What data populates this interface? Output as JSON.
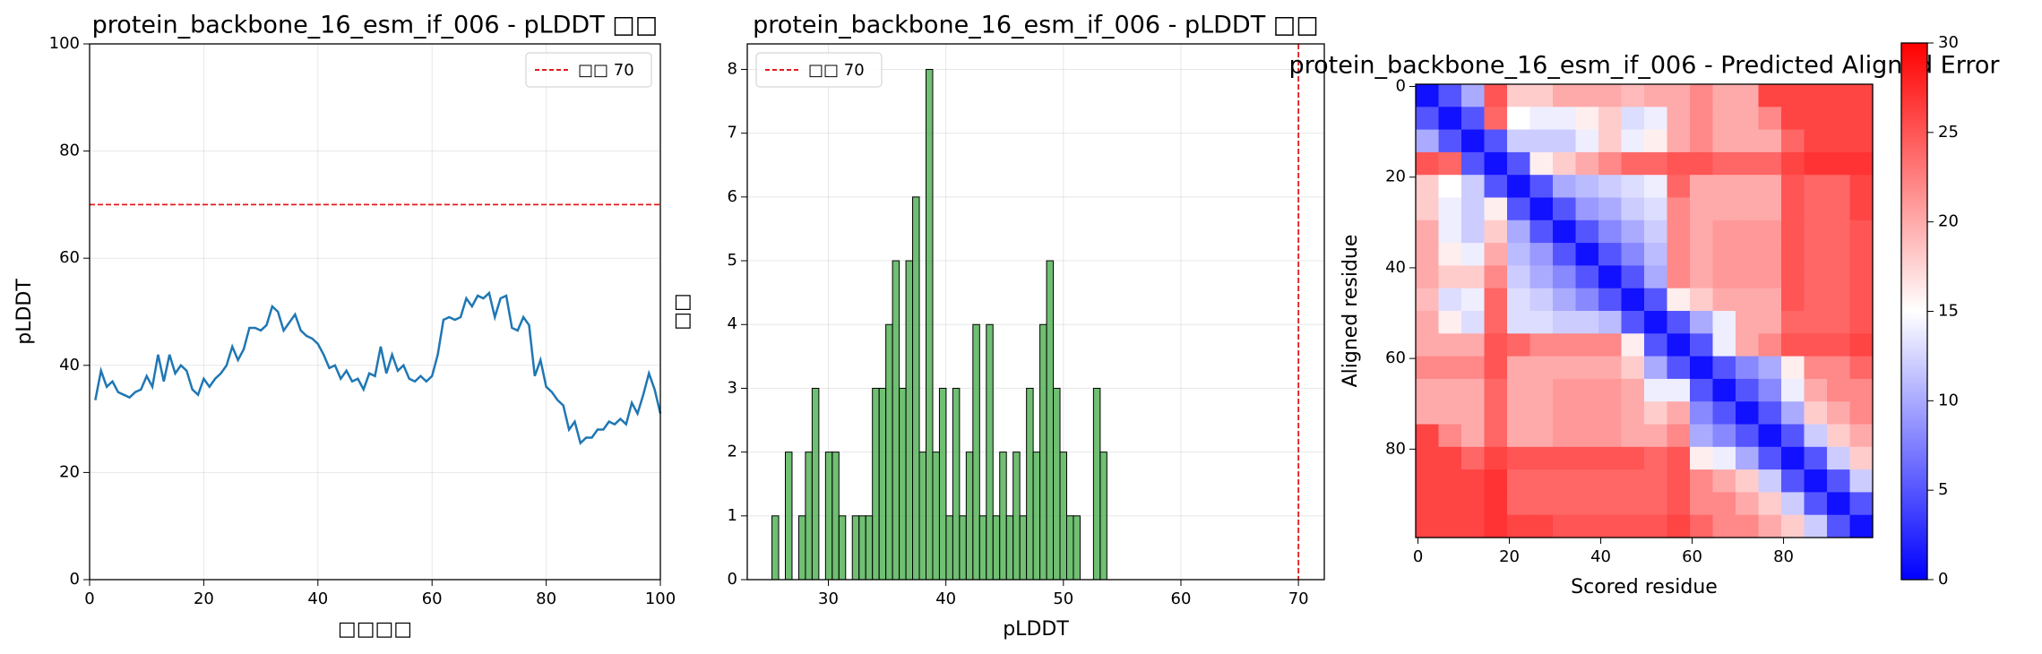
{
  "chart_data": [
    {
      "type": "line",
      "title": "protein_backbone_16_esm_if_006 - pLDDT □□",
      "xlabel": "□□□□",
      "ylabel": "pLDDT",
      "x": [
        1,
        2,
        3,
        4,
        5,
        6,
        7,
        8,
        9,
        10,
        11,
        12,
        13,
        14,
        15,
        16,
        17,
        18,
        19,
        20,
        21,
        22,
        23,
        24,
        25,
        26,
        27,
        28,
        29,
        30,
        31,
        32,
        33,
        34,
        35,
        36,
        37,
        38,
        39,
        40,
        41,
        42,
        43,
        44,
        45,
        46,
        47,
        48,
        49,
        50,
        51,
        52,
        53,
        54,
        55,
        56,
        57,
        58,
        59,
        60,
        61,
        62,
        63,
        64,
        65,
        66,
        67,
        68,
        69,
        70,
        71,
        72,
        73,
        74,
        75,
        76,
        77,
        78,
        79,
        80,
        81,
        82,
        83,
        84,
        85,
        86,
        87,
        88,
        89,
        90,
        91,
        92,
        93,
        94,
        95,
        96,
        97,
        98,
        99,
        100
      ],
      "values": [
        33.5,
        39,
        36,
        37,
        35,
        34.5,
        34,
        35,
        35.5,
        38,
        36,
        42,
        37,
        42,
        38.5,
        40,
        39,
        35.5,
        34.5,
        37.5,
        36,
        37.5,
        38.5,
        40,
        43.5,
        41,
        43,
        47,
        47,
        46.5,
        47.5,
        51,
        50,
        46.5,
        48,
        49.5,
        46.5,
        45.5,
        45,
        44,
        42,
        39.5,
        40,
        37.5,
        39,
        37,
        37.5,
        35.5,
        38.5,
        38,
        43.5,
        38.5,
        42,
        39,
        40,
        37.5,
        37,
        38,
        37,
        38,
        42,
        48.5,
        49,
        48.5,
        49,
        52.5,
        51,
        53,
        52.5,
        53.5,
        49,
        52.5,
        53,
        47,
        46.5,
        49,
        47.5,
        38,
        41,
        36,
        35,
        33.5,
        32.5,
        28,
        29.5,
        25.5,
        26.5,
        26.5,
        28,
        28,
        29.5,
        29,
        30,
        29,
        33,
        31,
        34.5,
        38.5,
        35.5,
        31
      ],
      "color": "#1f77b4",
      "xlim": [
        0,
        100
      ],
      "ylim": [
        0,
        100
      ],
      "xticks": [
        0,
        20,
        40,
        60,
        80,
        100
      ],
      "yticks": [
        0,
        20,
        40,
        60,
        80,
        100
      ],
      "grid": true,
      "threshold": {
        "value": 70,
        "label": "□□ 70",
        "color": "#e41a1c"
      },
      "legend": "upper right"
    },
    {
      "type": "histogram",
      "title": "protein_backbone_16_esm_if_006 - pLDDT □□",
      "xlabel": "pLDDT",
      "ylabel": "□□",
      "bins": [
        25.2,
        25.77,
        26.34,
        26.91,
        27.48,
        28.05,
        28.62,
        29.19,
        29.76,
        30.33,
        30.9,
        31.47,
        32.04,
        32.61,
        33.18,
        33.75,
        34.32,
        34.89,
        35.46,
        36.03,
        36.6,
        37.17,
        37.74,
        38.31,
        38.88,
        39.45,
        40.02,
        40.59,
        41.16,
        41.73,
        42.3,
        42.87,
        43.44,
        44.01,
        44.58,
        45.15,
        45.72,
        46.29,
        46.86,
        47.43,
        48.0,
        48.57,
        49.14,
        49.71,
        50.28,
        50.85,
        51.42,
        51.99,
        52.56,
        53.13,
        53.7
      ],
      "counts": [
        1,
        0,
        2,
        0,
        1,
        2,
        3,
        0,
        2,
        2,
        1,
        0,
        1,
        1,
        1,
        3,
        3,
        4,
        5,
        3,
        5,
        6,
        2,
        8,
        2,
        3,
        1,
        3,
        1,
        2,
        4,
        1,
        4,
        1,
        2,
        1,
        2,
        1,
        3,
        2,
        4,
        5,
        3,
        2,
        1,
        1,
        0,
        0,
        3,
        2
      ],
      "color": "#4caf50",
      "xlim": [
        23.1,
        72.2
      ],
      "ylim": [
        0,
        8.4
      ],
      "xticks": [
        30,
        40,
        50,
        60,
        70
      ],
      "yticks": [
        0,
        1,
        2,
        3,
        4,
        5,
        6,
        7,
        8
      ],
      "grid": true,
      "threshold": {
        "value": 70,
        "label": "□□ 70",
        "color": "#e41a1c"
      },
      "legend": "upper left"
    },
    {
      "type": "heatmap",
      "title": "protein_backbone_16_esm_if_006 - Predicted Aligned Error",
      "xlabel": "Scored residue",
      "ylabel": "Aligned residue",
      "xlim": [
        -0.5,
        99.5
      ],
      "ylim": [
        99.5,
        -0.5
      ],
      "xticks": [
        0,
        20,
        40,
        60,
        80
      ],
      "yticks": [
        0,
        20,
        40,
        60,
        80
      ],
      "colormap": "bwr",
      "clim": [
        0,
        30
      ],
      "colorbar_ticks": [
        0,
        5,
        10,
        15,
        20,
        25,
        30
      ],
      "matrix": [
        [
          1,
          5,
          10,
          25,
          18,
          18,
          20,
          20,
          20,
          19,
          20,
          20,
          22,
          20,
          20,
          26,
          26,
          26,
          26,
          26
        ],
        [
          5,
          1,
          5,
          24,
          15,
          14,
          14,
          16,
          18,
          13,
          14,
          20,
          22,
          20,
          20,
          22,
          26,
          26,
          26,
          26
        ],
        [
          10,
          5,
          1,
          5,
          12,
          12,
          12,
          14,
          18,
          14,
          16,
          20,
          22,
          20,
          20,
          20,
          24,
          26,
          26,
          26
        ],
        [
          25,
          24,
          5,
          1,
          5,
          16,
          18,
          20,
          22,
          24,
          24,
          25,
          25,
          24,
          24,
          24,
          26,
          27,
          27,
          27
        ],
        [
          18,
          15,
          12,
          5,
          1,
          5,
          10,
          11,
          12,
          13,
          14,
          24,
          20,
          20,
          20,
          20,
          25,
          24,
          24,
          26
        ],
        [
          18,
          14,
          12,
          16,
          5,
          1,
          5,
          9,
          10,
          12,
          13,
          22,
          20,
          20,
          20,
          20,
          25,
          24,
          24,
          26
        ],
        [
          20,
          14,
          12,
          18,
          10,
          5,
          1,
          5,
          8,
          10,
          12,
          22,
          20,
          21,
          21,
          21,
          25,
          24,
          24,
          25
        ],
        [
          20,
          16,
          14,
          20,
          11,
          9,
          5,
          1,
          5,
          8,
          11,
          22,
          20,
          21,
          21,
          21,
          25,
          24,
          24,
          25
        ],
        [
          20,
          18,
          18,
          22,
          12,
          10,
          8,
          5,
          1,
          5,
          10,
          22,
          20,
          21,
          21,
          21,
          25,
          24,
          24,
          25
        ],
        [
          19,
          13,
          14,
          24,
          13,
          12,
          10,
          8,
          5,
          1,
          5,
          16,
          18,
          20,
          20,
          20,
          25,
          24,
          24,
          25
        ],
        [
          20,
          16,
          13,
          24,
          13,
          13,
          12,
          12,
          11,
          5,
          1,
          5,
          10,
          14,
          20,
          20,
          24,
          24,
          24,
          25
        ],
        [
          20,
          20,
          20,
          25,
          24,
          22,
          22,
          22,
          22,
          16,
          5,
          1,
          5,
          14,
          20,
          22,
          25,
          25,
          25,
          26
        ],
        [
          22,
          22,
          22,
          25,
          20,
          20,
          20,
          20,
          20,
          18,
          10,
          5,
          1,
          5,
          8,
          10,
          16,
          22,
          22,
          24
        ],
        [
          20,
          20,
          20,
          24,
          20,
          20,
          21,
          21,
          21,
          20,
          14,
          14,
          5,
          1,
          5,
          8,
          14,
          20,
          22,
          22
        ],
        [
          20,
          20,
          20,
          24,
          20,
          20,
          21,
          21,
          21,
          20,
          18,
          20,
          8,
          5,
          1,
          5,
          10,
          18,
          20,
          22
        ],
        [
          26,
          22,
          20,
          24,
          20,
          20,
          21,
          21,
          21,
          20,
          20,
          22,
          10,
          8,
          5,
          1,
          5,
          12,
          18,
          20
        ],
        [
          26,
          26,
          24,
          26,
          25,
          25,
          25,
          25,
          25,
          25,
          24,
          25,
          16,
          14,
          10,
          5,
          1,
          5,
          12,
          18
        ],
        [
          26,
          26,
          26,
          27,
          24,
          24,
          24,
          24,
          24,
          24,
          24,
          25,
          22,
          20,
          18,
          12,
          5,
          1,
          5,
          12
        ],
        [
          26,
          26,
          26,
          27,
          24,
          24,
          24,
          24,
          24,
          24,
          24,
          25,
          22,
          22,
          20,
          18,
          12,
          5,
          1,
          5
        ],
        [
          26,
          26,
          26,
          27,
          26,
          26,
          25,
          25,
          25,
          25,
          25,
          26,
          24,
          22,
          22,
          20,
          18,
          12,
          5,
          1
        ]
      ]
    }
  ]
}
